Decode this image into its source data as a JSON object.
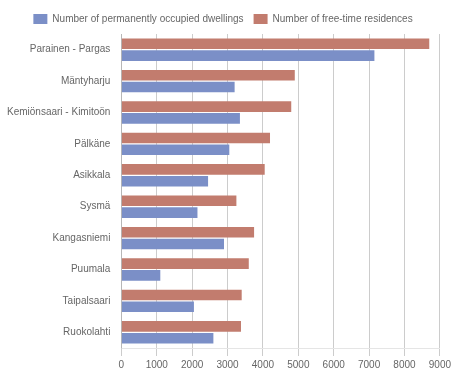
{
  "chart_data": {
    "type": "bar",
    "orientation": "horizontal",
    "categories": [
      "Parainen - Pargas",
      "Mäntyharju",
      "Kemiönsaari - Kimitoön",
      "Pälkäne",
      "Asikkala",
      "Sysmä",
      "Kangasniemi",
      "Puumala",
      "Taipalsaari",
      "Ruokolahti"
    ],
    "series": [
      {
        "name": "Number of free-time residences",
        "color": "#c27c6e",
        "values": [
          8700,
          4900,
          4800,
          4200,
          4050,
          3250,
          3750,
          3600,
          3400,
          3380
        ]
      },
      {
        "name": "Number of permanently occupied dwellings",
        "color": "#7b8fc7",
        "values": [
          7150,
          3200,
          3350,
          3050,
          2450,
          2150,
          2900,
          1100,
          2050,
          2600
        ]
      }
    ],
    "xlim": [
      0,
      9000
    ],
    "xticks": [
      0,
      1000,
      2000,
      3000,
      4000,
      5000,
      6000,
      7000,
      8000,
      9000
    ],
    "grid": "x",
    "legend": "top"
  }
}
